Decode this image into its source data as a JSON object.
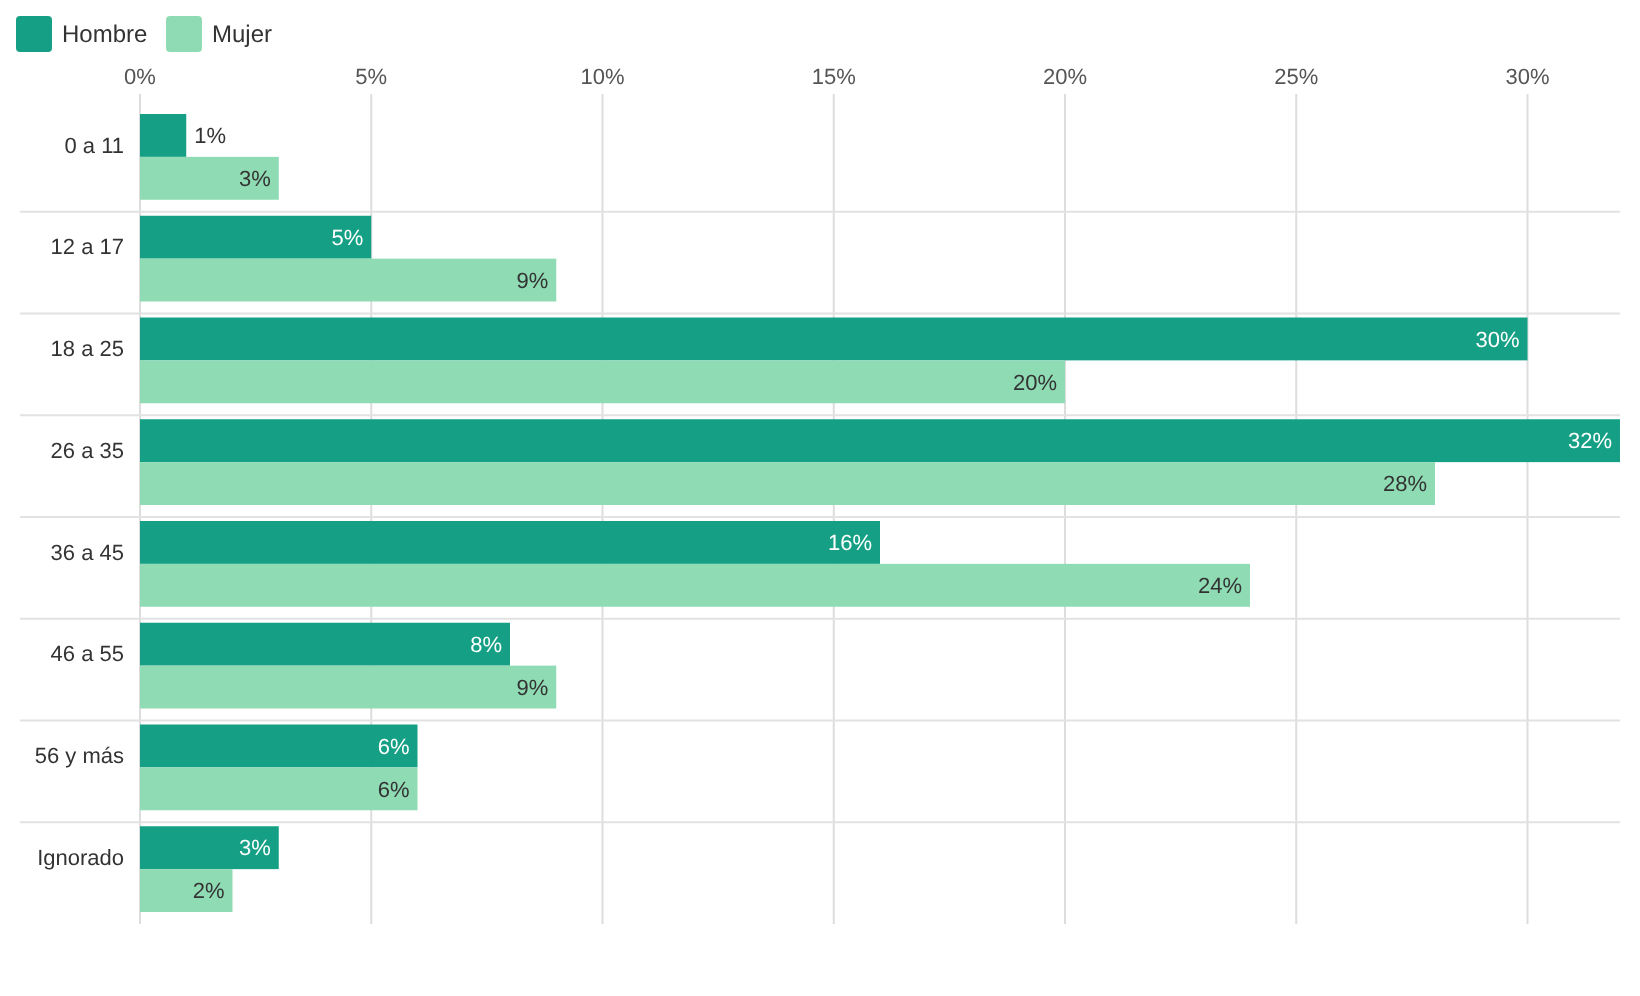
{
  "chart_data": {
    "type": "bar",
    "orientation": "horizontal",
    "categories": [
      "0 a 11",
      "12 a 17",
      "18 a 25",
      "26 a 35",
      "36 a 45",
      "46 a 55",
      "56 y más",
      "Ignorado"
    ],
    "series": [
      {
        "name": "Hombre",
        "color": "#15a085",
        "values": [
          1,
          5,
          30,
          32,
          16,
          8,
          6,
          3
        ],
        "value_labels": [
          "1%",
          "5%",
          "30%",
          "32%",
          "16%",
          "8%",
          "6%",
          "3%"
        ]
      },
      {
        "name": "Mujer",
        "color": "#8fdcb4",
        "values": [
          3,
          9,
          20,
          28,
          24,
          9,
          6,
          2
        ],
        "value_labels": [
          "3%",
          "9%",
          "20%",
          "28%",
          "24%",
          "9%",
          "6%",
          "2%"
        ]
      }
    ],
    "xlim": [
      0,
      32
    ],
    "xticks": [
      {
        "value": 0,
        "label": "0%"
      },
      {
        "value": 5,
        "label": "5%"
      },
      {
        "value": 10,
        "label": "10%"
      },
      {
        "value": 15,
        "label": "15%"
      },
      {
        "value": 20,
        "label": "20%"
      },
      {
        "value": 25,
        "label": "25%"
      },
      {
        "value": 30,
        "label": "30%"
      }
    ],
    "grid": "x",
    "legend": "top left"
  }
}
